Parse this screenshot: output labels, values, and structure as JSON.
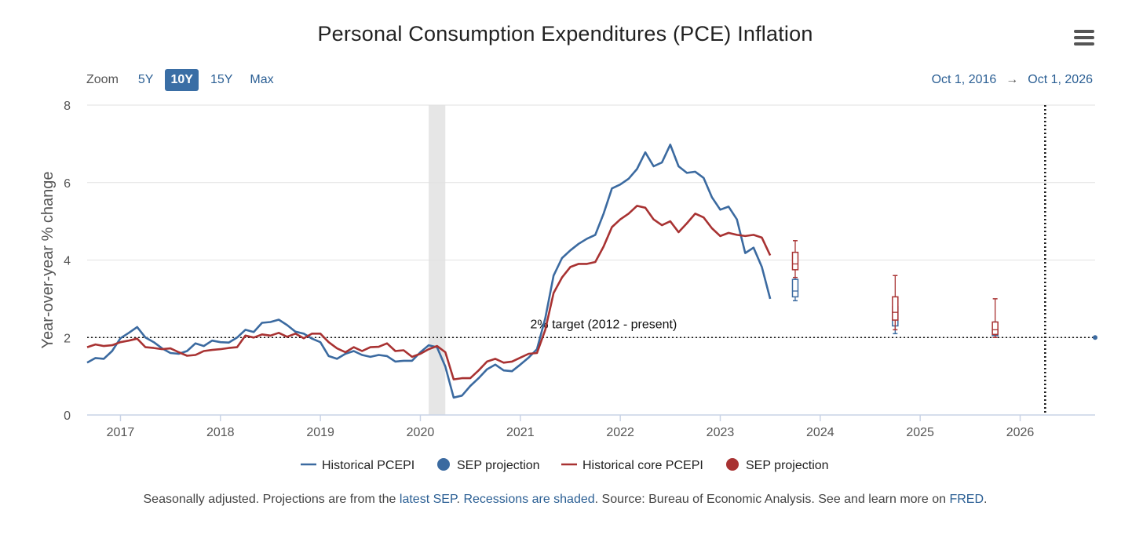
{
  "title": "Personal Consumption Expenditures (PCE) Inflation",
  "zoom": {
    "label": "Zoom",
    "options": [
      "5Y",
      "10Y",
      "15Y",
      "Max"
    ],
    "active": "10Y"
  },
  "range": {
    "start": "Oct 1, 2016",
    "arrow": "→",
    "end": "Oct 1, 2026"
  },
  "footer": {
    "t1": "Seasonally adjusted. Projections are from the ",
    "link1": "latest SEP",
    "t2": ". ",
    "link2": "Recessions are shaded",
    "t3": ". Source: Bureau of Economic Analysis. See and learn more on ",
    "link3": "FRED",
    "t4": "."
  },
  "colors": {
    "headline": "#3b6aa0",
    "core": "#a83232",
    "target": "#111111",
    "recession": "#e6e6e6"
  },
  "chart_data": {
    "type": "line",
    "ylabel": "Year-over-year % change",
    "ylim": [
      0,
      8
    ],
    "yticks": [
      0,
      2,
      4,
      6,
      8
    ],
    "xlim": [
      "2016-09",
      "2026-10"
    ],
    "xticks": [
      "2017",
      "2018",
      "2019",
      "2020",
      "2021",
      "2022",
      "2023",
      "2024",
      "2025",
      "2026"
    ],
    "grid": true,
    "legend_position": "bottom",
    "legend": [
      {
        "label": "Historical PCEPI",
        "kind": "line",
        "color": "#3b6aa0"
      },
      {
        "label": "SEP projection",
        "kind": "dot",
        "color": "#3b6aa0"
      },
      {
        "label": "Historical core PCEPI",
        "kind": "line",
        "color": "#a83232"
      },
      {
        "label": "SEP projection",
        "kind": "dot",
        "color": "#a83232"
      }
    ],
    "recession": {
      "start": "2020-02",
      "end": "2020-04"
    },
    "target": {
      "value": 2,
      "label": "2% target (2012 - present)"
    },
    "marker_line_date": "2026-04",
    "start_month": "2016-09",
    "series": [
      {
        "name": "Historical PCEPI",
        "color": "#3b6aa0",
        "values": [
          1.35,
          1.47,
          1.45,
          1.65,
          1.98,
          2.12,
          2.27,
          2.0,
          1.88,
          1.72,
          1.6,
          1.58,
          1.65,
          1.85,
          1.78,
          1.92,
          1.88,
          1.87,
          2.0,
          2.2,
          2.14,
          2.38,
          2.4,
          2.46,
          2.32,
          2.15,
          2.1,
          1.97,
          1.88,
          1.52,
          1.45,
          1.58,
          1.65,
          1.55,
          1.5,
          1.55,
          1.52,
          1.38,
          1.4,
          1.4,
          1.62,
          1.8,
          1.75,
          1.25,
          0.45,
          0.5,
          0.75,
          0.95,
          1.18,
          1.3,
          1.15,
          1.13,
          1.3,
          1.48,
          1.7,
          2.5,
          3.6,
          4.05,
          4.25,
          4.42,
          4.55,
          4.65,
          5.2,
          5.85,
          5.95,
          6.1,
          6.35,
          6.78,
          6.42,
          6.52,
          6.98,
          6.42,
          6.25,
          6.28,
          6.12,
          5.62,
          5.3,
          5.38,
          5.05,
          4.18,
          4.32,
          3.82,
          3.0
        ]
      },
      {
        "name": "Historical core PCEPI",
        "color": "#a83232",
        "values": [
          1.75,
          1.82,
          1.78,
          1.8,
          1.88,
          1.92,
          1.97,
          1.75,
          1.73,
          1.7,
          1.72,
          1.62,
          1.53,
          1.55,
          1.65,
          1.68,
          1.7,
          1.73,
          1.75,
          2.05,
          2.0,
          2.08,
          2.05,
          2.12,
          2.02,
          2.1,
          1.98,
          2.1,
          2.1,
          1.88,
          1.72,
          1.62,
          1.75,
          1.65,
          1.75,
          1.76,
          1.85,
          1.65,
          1.67,
          1.5,
          1.58,
          1.7,
          1.78,
          1.62,
          0.92,
          0.95,
          0.95,
          1.15,
          1.38,
          1.45,
          1.35,
          1.38,
          1.48,
          1.58,
          1.6,
          2.2,
          3.15,
          3.55,
          3.82,
          3.9,
          3.9,
          3.95,
          4.35,
          4.85,
          5.05,
          5.2,
          5.4,
          5.35,
          5.05,
          4.9,
          5.0,
          4.72,
          4.95,
          5.2,
          5.1,
          4.82,
          4.62,
          4.7,
          4.65,
          4.62,
          4.65,
          4.58,
          4.12
        ]
      }
    ],
    "projections": [
      {
        "series": "SEP projection (PCEPI)",
        "color": "#3b6aa0",
        "date": "2023-10",
        "low": 2.95,
        "q1": 3.05,
        "median": 3.2,
        "q3": 3.5,
        "high": 3.55
      },
      {
        "series": "SEP projection (core PCEPI)",
        "color": "#a83232",
        "date": "2023-10",
        "low": 3.55,
        "q1": 3.75,
        "median": 3.9,
        "q3": 4.2,
        "high": 4.5
      },
      {
        "series": "SEP projection (PCEPI)",
        "color": "#3b6aa0",
        "date": "2024-10",
        "low": 2.1,
        "q1": 2.3,
        "median": 2.5,
        "q3": 2.8,
        "high": 3.0
      },
      {
        "series": "SEP projection (core PCEPI)",
        "color": "#a83232",
        "date": "2024-10",
        "low": 2.2,
        "q1": 2.45,
        "median": 2.65,
        "q3": 3.05,
        "high": 3.6
      },
      {
        "series": "SEP projection (PCEPI)",
        "color": "#3b6aa0",
        "date": "2025-10",
        "low": 2.0,
        "q1": 2.05,
        "median": 2.1,
        "q3": 2.2,
        "high": 2.4
      },
      {
        "series": "SEP projection (core PCEPI)",
        "color": "#a83232",
        "date": "2025-10",
        "low": 2.0,
        "q1": 2.08,
        "median": 2.2,
        "q3": 2.4,
        "high": 3.0
      },
      {
        "series": "SEP projection (PCEPI)",
        "color": "#3b6aa0",
        "date": "2026-10",
        "low": 2.0,
        "q1": 2.0,
        "median": 2.0,
        "q3": 2.0,
        "high": 2.0
      }
    ]
  }
}
